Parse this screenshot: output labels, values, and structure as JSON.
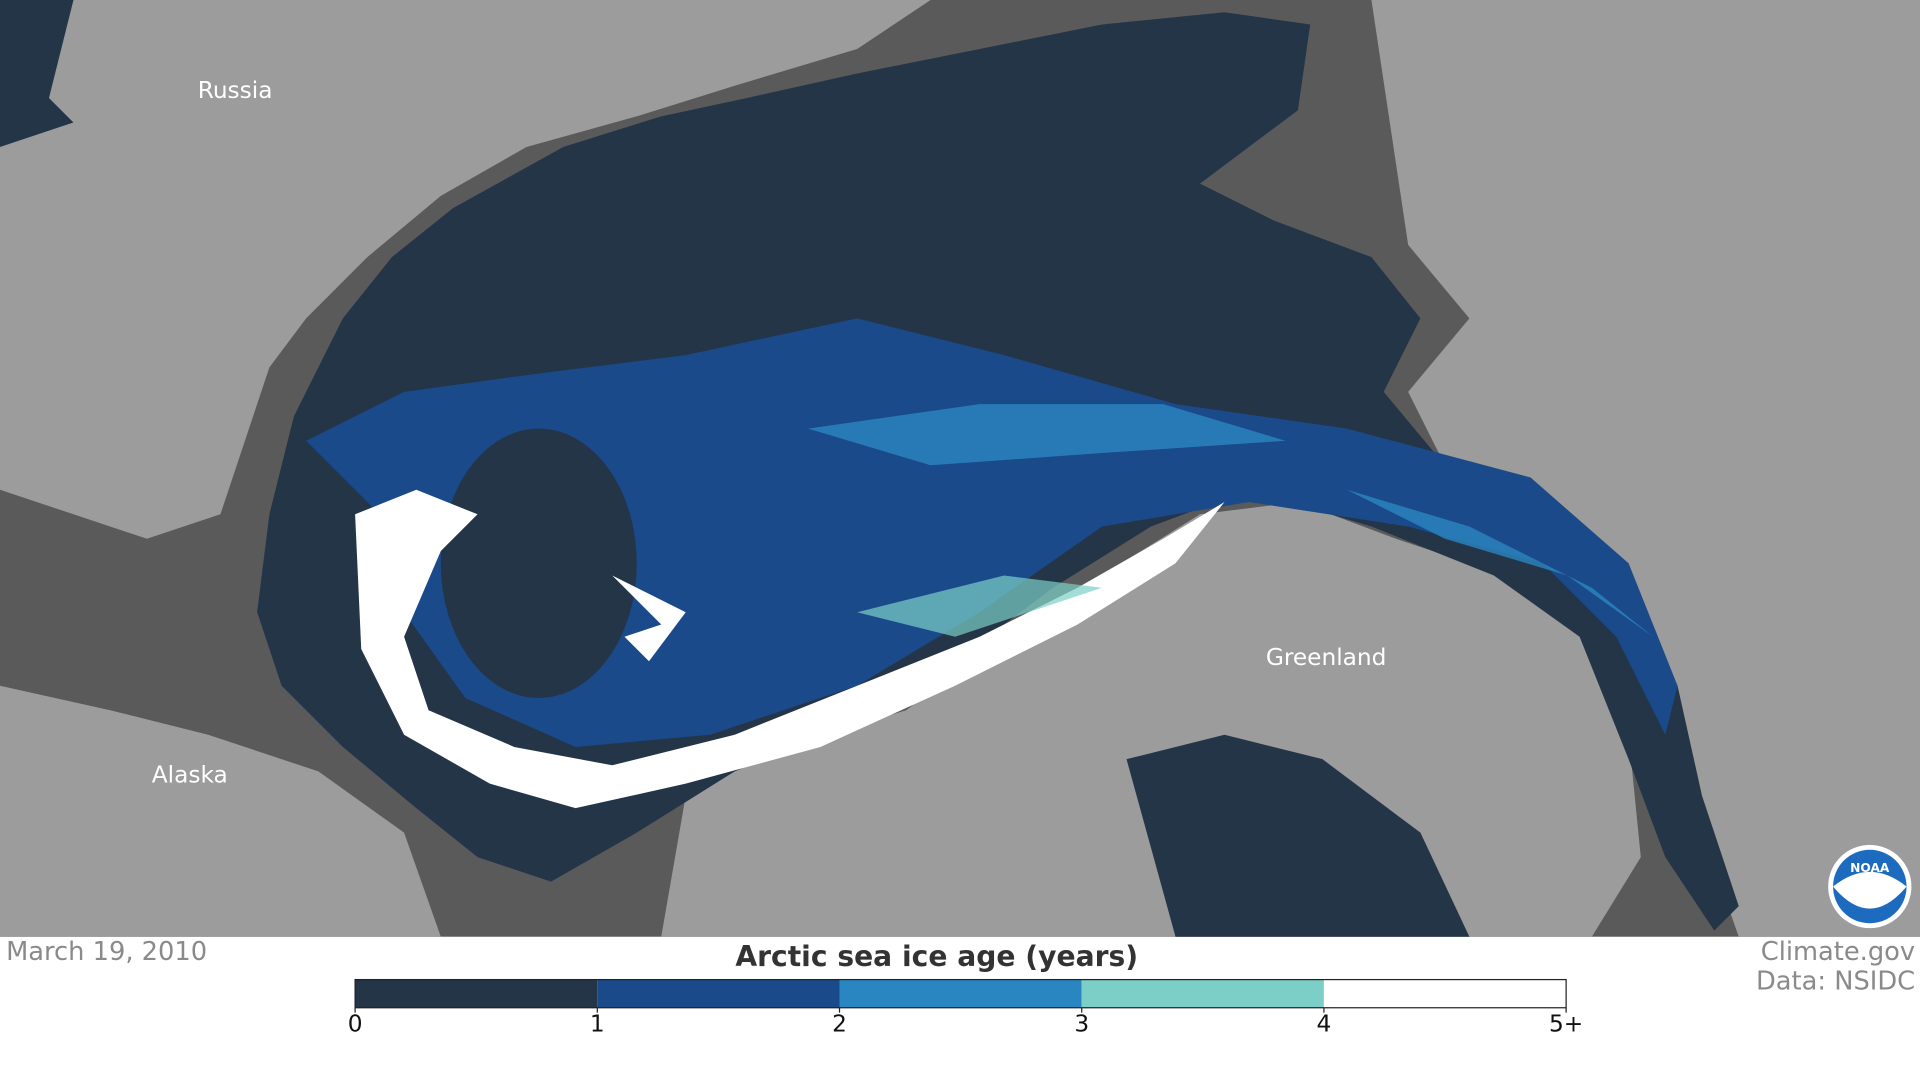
{
  "map": {
    "labels": [
      "Russia",
      "Alaska",
      "Greenland"
    ],
    "date": "March 19, 2010",
    "credit": "Climate.gov",
    "source": "Data: NSIDC",
    "logo": "NOAA"
  },
  "legend": {
    "title": "Arctic sea ice age (years)",
    "ticks": [
      0,
      1,
      2,
      3,
      4,
      {
        "value": 5,
        "label": "5+"
      }
    ],
    "colors": [
      "#243548",
      "#1a4a8a",
      "#2a86c0",
      "#7ccfc6",
      "#ffffff"
    ]
  }
}
